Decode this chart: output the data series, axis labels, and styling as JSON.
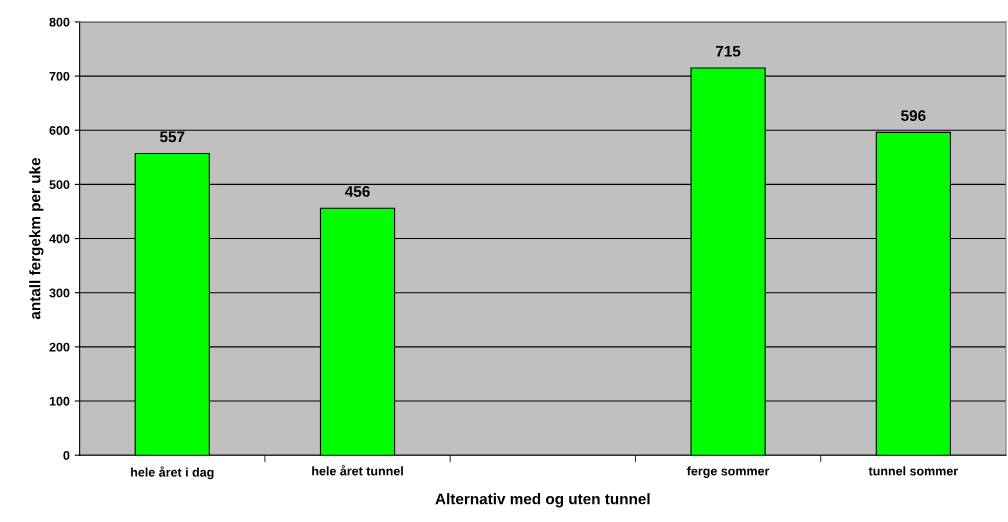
{
  "chart_data": {
    "type": "bar",
    "xlabel": "Alternativ med og uten tunnel",
    "ylabel": "antall fergekm per uke",
    "categories": [
      "hele året i dag",
      "hele året tunnel",
      null,
      "ferge sommer",
      "tunnel sommer"
    ],
    "values": [
      557,
      456,
      null,
      715,
      596
    ],
    "color": "#00ff00",
    "ylim": [
      0,
      800
    ],
    "yticks": [
      0,
      100,
      200,
      300,
      400,
      500,
      600,
      700,
      800
    ],
    "grid": "y",
    "data_labels": true
  }
}
